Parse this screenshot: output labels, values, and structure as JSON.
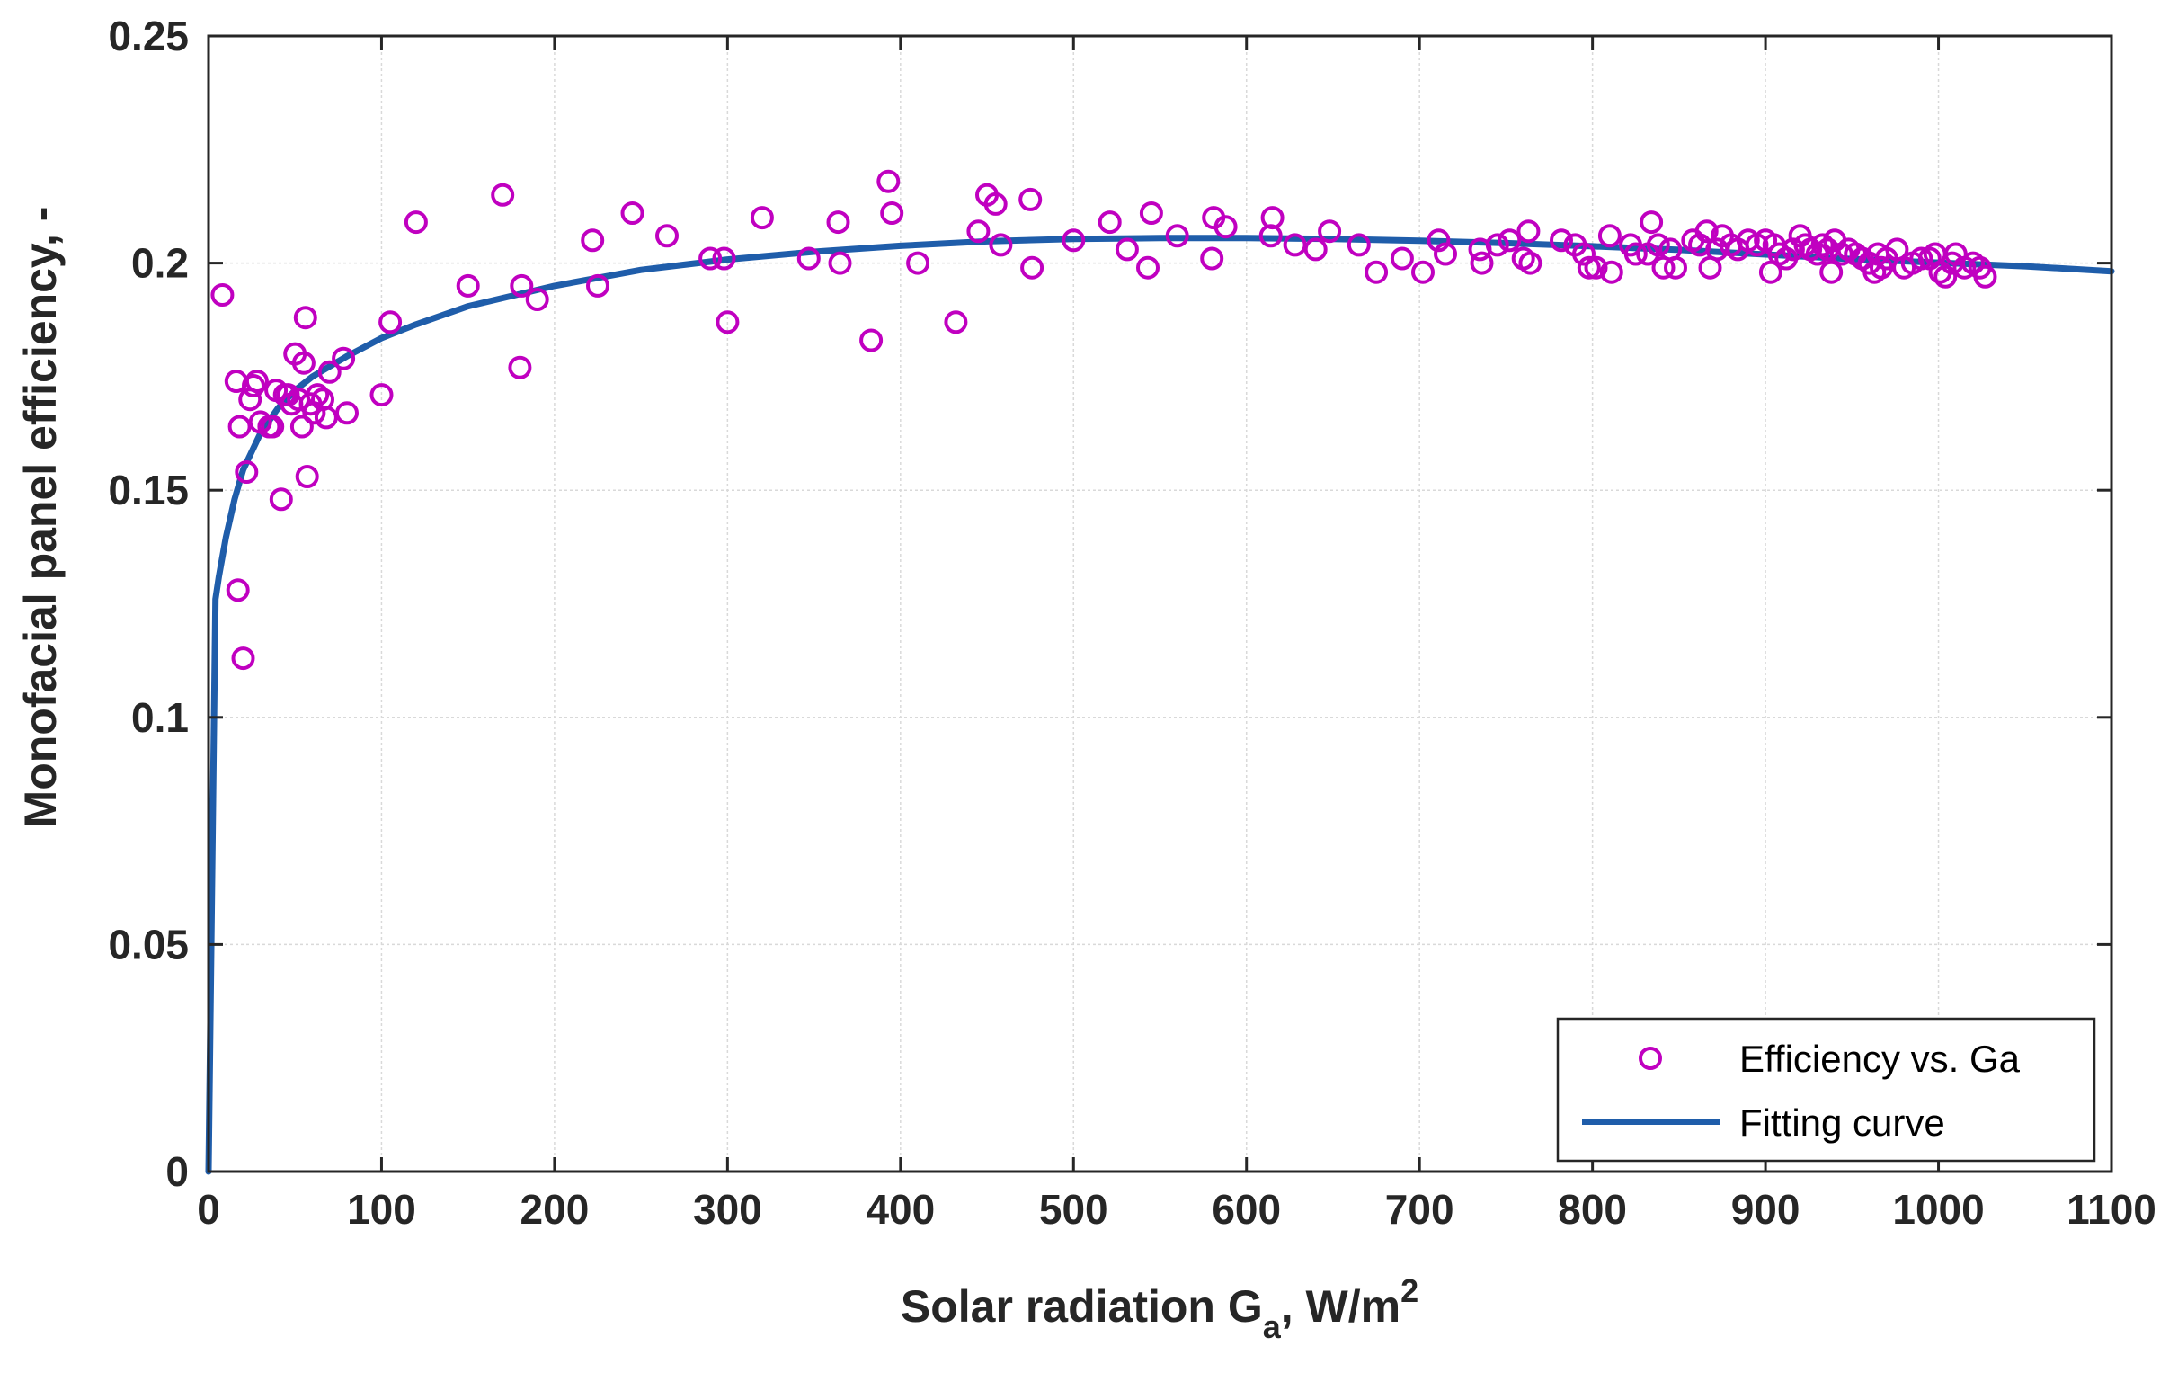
{
  "chart_data": {
    "type": "scatter",
    "title": "",
    "xlabel": "Solar radiation G",
    "xlabel_sub": "a",
    "xlabel_units": ", W/m",
    "xlabel_sup": "2",
    "ylabel": "Monofacial panel efficiency, -",
    "xlim": [
      0,
      1100
    ],
    "ylim": [
      0,
      0.25
    ],
    "xticks": [
      0,
      100,
      200,
      300,
      400,
      500,
      600,
      700,
      800,
      900,
      1000,
      1100
    ],
    "xtick_labels": [
      "0",
      "100",
      "200",
      "300",
      "400",
      "500",
      "600",
      "700",
      "800",
      "900",
      "1000",
      "1100"
    ],
    "yticks": [
      0,
      0.05,
      0.1,
      0.15,
      0.2,
      0.25
    ],
    "ytick_labels": [
      "0",
      "0.05",
      "0.1",
      "0.15",
      "0.2",
      "0.25"
    ],
    "grid": true,
    "legend_position": "bottom-right",
    "series": [
      {
        "name": "Efficiency vs. Ga",
        "kind": "scatter",
        "marker": "circle",
        "color": "#C000C0",
        "points": [
          [
            8,
            0.193
          ],
          [
            16,
            0.174
          ],
          [
            17,
            0.128
          ],
          [
            18,
            0.164
          ],
          [
            20,
            0.113
          ],
          [
            22,
            0.154
          ],
          [
            24,
            0.17
          ],
          [
            26,
            0.173
          ],
          [
            28,
            0.174
          ],
          [
            30,
            0.165
          ],
          [
            35,
            0.164
          ],
          [
            37,
            0.164
          ],
          [
            39,
            0.172
          ],
          [
            42,
            0.148
          ],
          [
            44,
            0.171
          ],
          [
            46,
            0.171
          ],
          [
            48,
            0.169
          ],
          [
            50,
            0.18
          ],
          [
            52,
            0.17
          ],
          [
            54,
            0.164
          ],
          [
            55,
            0.178
          ],
          [
            56,
            0.188
          ],
          [
            57,
            0.153
          ],
          [
            59,
            0.169
          ],
          [
            61,
            0.167
          ],
          [
            63,
            0.171
          ],
          [
            66,
            0.17
          ],
          [
            68,
            0.166
          ],
          [
            70,
            0.176
          ],
          [
            78,
            0.179
          ],
          [
            80,
            0.167
          ],
          [
            100,
            0.171
          ],
          [
            105,
            0.187
          ],
          [
            120,
            0.209
          ],
          [
            150,
            0.195
          ],
          [
            170,
            0.215
          ],
          [
            180,
            0.177
          ],
          [
            181,
            0.195
          ],
          [
            190,
            0.192
          ],
          [
            222,
            0.205
          ],
          [
            225,
            0.195
          ],
          [
            245,
            0.211
          ],
          [
            265,
            0.206
          ],
          [
            290,
            0.201
          ],
          [
            298,
            0.201
          ],
          [
            300,
            0.187
          ],
          [
            320,
            0.21
          ],
          [
            347,
            0.201
          ],
          [
            364,
            0.209
          ],
          [
            365,
            0.2
          ],
          [
            383,
            0.183
          ],
          [
            393,
            0.218
          ],
          [
            395,
            0.211
          ],
          [
            410,
            0.2
          ],
          [
            432,
            0.187
          ],
          [
            445,
            0.207
          ],
          [
            450,
            0.215
          ],
          [
            455,
            0.213
          ],
          [
            458,
            0.204
          ],
          [
            475,
            0.214
          ],
          [
            476,
            0.199
          ],
          [
            500,
            0.205
          ],
          [
            521,
            0.209
          ],
          [
            531,
            0.203
          ],
          [
            543,
            0.199
          ],
          [
            545,
            0.211
          ],
          [
            560,
            0.206
          ],
          [
            580,
            0.201
          ],
          [
            581,
            0.21
          ],
          [
            588,
            0.208
          ],
          [
            614,
            0.206
          ],
          [
            615,
            0.21
          ],
          [
            628,
            0.204
          ],
          [
            640,
            0.203
          ],
          [
            648,
            0.207
          ],
          [
            665,
            0.204
          ],
          [
            675,
            0.198
          ],
          [
            690,
            0.201
          ],
          [
            702,
            0.198
          ],
          [
            711,
            0.205
          ],
          [
            715,
            0.202
          ],
          [
            735,
            0.203
          ],
          [
            736,
            0.2
          ],
          [
            745,
            0.204
          ],
          [
            752,
            0.205
          ],
          [
            760,
            0.201
          ],
          [
            763,
            0.207
          ],
          [
            764,
            0.2
          ],
          [
            782,
            0.205
          ],
          [
            790,
            0.204
          ],
          [
            795,
            0.202
          ],
          [
            798,
            0.199
          ],
          [
            802,
            0.199
          ],
          [
            810,
            0.206
          ],
          [
            811,
            0.198
          ],
          [
            822,
            0.204
          ],
          [
            825,
            0.202
          ],
          [
            832,
            0.202
          ],
          [
            834,
            0.209
          ],
          [
            838,
            0.204
          ],
          [
            841,
            0.199
          ],
          [
            845,
            0.203
          ],
          [
            848,
            0.199
          ],
          [
            858,
            0.205
          ],
          [
            862,
            0.204
          ],
          [
            866,
            0.207
          ],
          [
            868,
            0.199
          ],
          [
            872,
            0.203
          ],
          [
            875,
            0.206
          ],
          [
            880,
            0.204
          ],
          [
            884,
            0.203
          ],
          [
            890,
            0.205
          ],
          [
            895,
            0.204
          ],
          [
            900,
            0.205
          ],
          [
            903,
            0.198
          ],
          [
            905,
            0.204
          ],
          [
            908,
            0.202
          ],
          [
            912,
            0.201
          ],
          [
            916,
            0.203
          ],
          [
            920,
            0.206
          ],
          [
            923,
            0.204
          ],
          [
            926,
            0.203
          ],
          [
            930,
            0.202
          ],
          [
            933,
            0.204
          ],
          [
            936,
            0.203
          ],
          [
            938,
            0.198
          ],
          [
            940,
            0.205
          ],
          [
            944,
            0.202
          ],
          [
            948,
            0.203
          ],
          [
            952,
            0.202
          ],
          [
            956,
            0.201
          ],
          [
            960,
            0.2
          ],
          [
            963,
            0.198
          ],
          [
            965,
            0.202
          ],
          [
            967,
            0.199
          ],
          [
            970,
            0.201
          ],
          [
            976,
            0.203
          ],
          [
            980,
            0.199
          ],
          [
            985,
            0.2
          ],
          [
            990,
            0.201
          ],
          [
            995,
            0.201
          ],
          [
            998,
            0.202
          ],
          [
            1001,
            0.198
          ],
          [
            1004,
            0.197
          ],
          [
            1008,
            0.2
          ],
          [
            1010,
            0.202
          ],
          [
            1015,
            0.199
          ],
          [
            1020,
            0.2
          ],
          [
            1024,
            0.199
          ],
          [
            1027,
            0.197
          ]
        ]
      },
      {
        "name": "Fitting curve",
        "kind": "line",
        "color": "#1F5DAA",
        "x": [
          0,
          4,
          6,
          10,
          15,
          20,
          30,
          40,
          50,
          60,
          80,
          100,
          120,
          150,
          200,
          250,
          300,
          350,
          400,
          450,
          500,
          550,
          600,
          650,
          700,
          750,
          800,
          850,
          900,
          950,
          1000,
          1050,
          1100
        ],
        "y": [
          0,
          0.126,
          0.131,
          0.1395,
          0.148,
          0.1545,
          0.1625,
          0.168,
          0.172,
          0.175,
          0.1795,
          0.1835,
          0.1865,
          0.1905,
          0.195,
          0.1985,
          0.2008,
          0.2025,
          0.2038,
          0.2048,
          0.2053,
          0.2055,
          0.2055,
          0.2053,
          0.2049,
          0.2044,
          0.2037,
          0.2029,
          0.2019,
          0.2009,
          0.2001,
          0.1993,
          0.1982
        ]
      }
    ]
  }
}
